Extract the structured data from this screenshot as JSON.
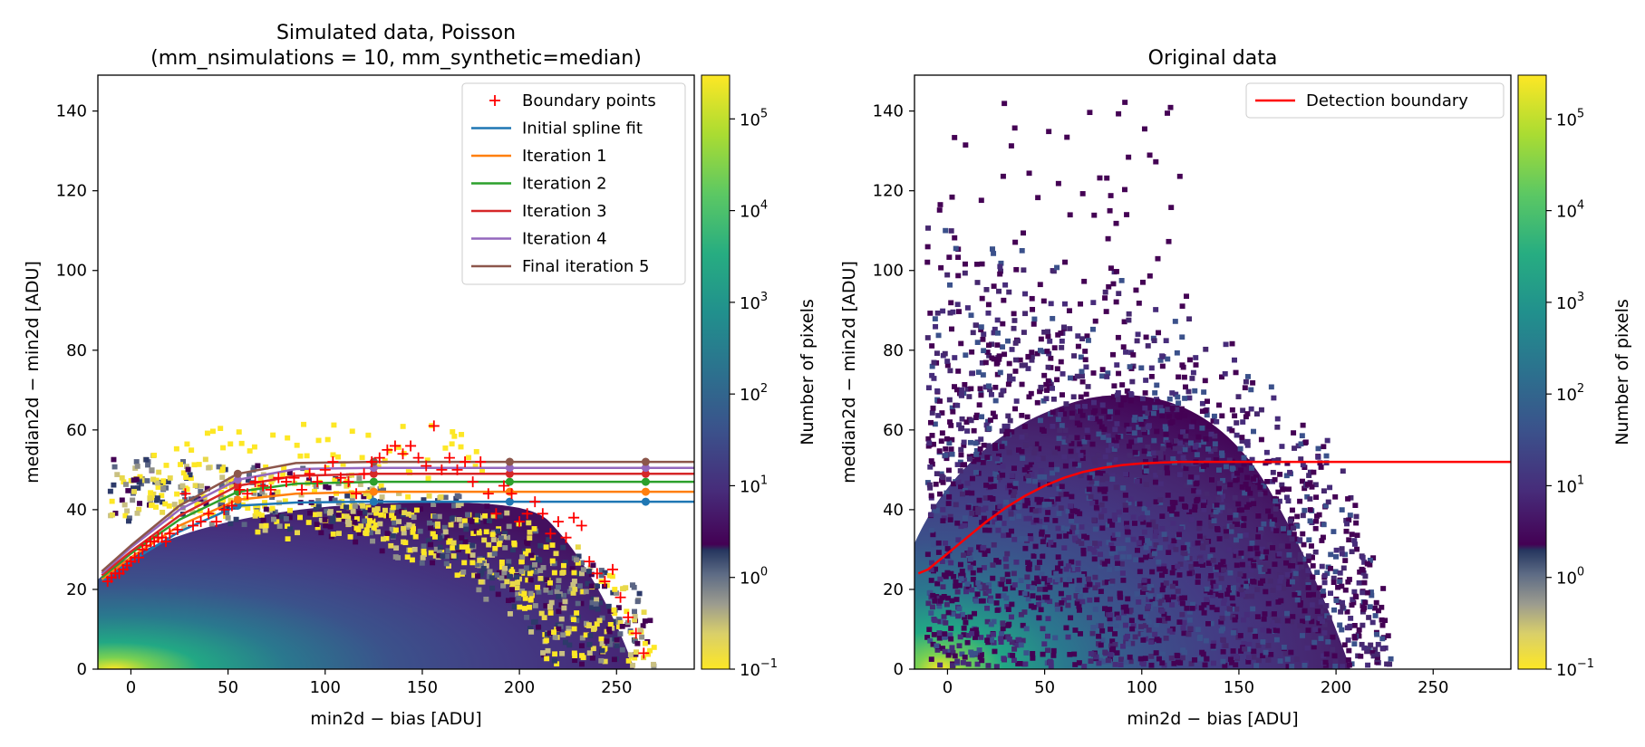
{
  "chart_data": [
    {
      "type": "heatmap",
      "title": "Simulated data, Poisson",
      "subtitle": "(mm_nsimulations = 10, mm_synthetic=median)",
      "xlabel": "min2d − bias  [ADU]",
      "ylabel": "median2d − min2d  [ADU]",
      "xlim": [
        -17,
        290
      ],
      "ylim": [
        0,
        149
      ],
      "x_ticks": [
        0,
        50,
        100,
        150,
        200,
        250
      ],
      "y_ticks": [
        0,
        20,
        40,
        60,
        80,
        100,
        120,
        140
      ],
      "colorbar": {
        "label": "Number of pixels",
        "scale": "log",
        "range": [
          0.1,
          300000
        ],
        "ticks": [
          "10",
          "10",
          "10",
          "10",
          "10",
          "10",
          "10"
        ],
        "tick_exponents": [
          "−1",
          "0",
          "1",
          "2",
          "3",
          "4",
          "5"
        ],
        "colormap": "viridis with cividis-like below 1"
      },
      "legend_position": "top-right",
      "series": [
        {
          "name": "Boundary points",
          "kind": "marker",
          "color": "#ff0000",
          "x": [
            -12,
            -10,
            -8,
            -6,
            -4,
            -2,
            0,
            2,
            4,
            6,
            8,
            10,
            12,
            14,
            16,
            18,
            20,
            24,
            28,
            32,
            36,
            40,
            44,
            48,
            52,
            56,
            60,
            64,
            68,
            72,
            76,
            80,
            84,
            88,
            92,
            96,
            100,
            104,
            108,
            112,
            116,
            120,
            124,
            128,
            132,
            136,
            140,
            144,
            148,
            152,
            156,
            160,
            164,
            168,
            172,
            176,
            180,
            184,
            188,
            192,
            196,
            200,
            204,
            208,
            212,
            216,
            220,
            224,
            228,
            232,
            236,
            240,
            244,
            248,
            252,
            256,
            260,
            264
          ],
          "y": [
            22,
            23,
            24,
            24,
            25,
            26,
            27,
            28,
            28,
            30,
            31,
            32,
            32,
            33,
            33,
            32,
            34,
            35,
            44,
            36,
            37,
            39,
            37,
            40,
            41,
            45,
            44,
            47,
            46,
            45,
            48,
            47,
            48,
            45,
            49,
            47,
            50,
            52,
            48,
            47,
            44,
            49,
            52,
            53,
            55,
            56,
            54,
            56,
            53,
            51,
            61,
            50,
            53,
            50,
            52,
            47,
            52,
            44,
            39,
            46,
            44,
            37,
            39,
            42,
            39,
            34,
            37,
            33,
            38,
            36,
            27,
            24,
            22,
            25,
            18,
            13,
            9,
            4
          ]
        },
        {
          "name": "Initial spline fit",
          "kind": "line",
          "color": "#1f77b4",
          "x": [
            -15,
            0,
            25,
            55,
            85,
            125,
            195,
            265,
            290
          ],
          "y": [
            22,
            27,
            34.5,
            41,
            41.8,
            42,
            42,
            42,
            42
          ]
        },
        {
          "name": "Iteration 1",
          "kind": "line",
          "color": "#ff7f0e",
          "x": [
            -15,
            0,
            25,
            55,
            85,
            125,
            195,
            265,
            290
          ],
          "y": [
            22.5,
            28,
            36,
            42.5,
            44,
            44.5,
            44.5,
            44.5,
            44.5
          ]
        },
        {
          "name": "Iteration 2",
          "kind": "line",
          "color": "#2ca02c",
          "x": [
            -15,
            0,
            25,
            55,
            85,
            125,
            195,
            265,
            290
          ],
          "y": [
            23,
            29,
            37.5,
            44.5,
            46.5,
            47,
            47,
            47,
            47
          ]
        },
        {
          "name": "Iteration 3",
          "kind": "line",
          "color": "#d62728",
          "x": [
            -15,
            0,
            25,
            55,
            85,
            125,
            195,
            265,
            290
          ],
          "y": [
            23.5,
            29.5,
            38.5,
            46,
            48.5,
            49,
            49,
            49,
            49
          ]
        },
        {
          "name": "Iteration 4",
          "kind": "line",
          "color": "#9467bd",
          "x": [
            -15,
            0,
            25,
            55,
            85,
            125,
            195,
            265,
            290
          ],
          "y": [
            24,
            30.5,
            40,
            47.5,
            50.2,
            50.5,
            50.5,
            50.5,
            50.5
          ]
        },
        {
          "name": "Final iteration 5",
          "kind": "line",
          "color": "#8c564b",
          "x": [
            -15,
            0,
            25,
            55,
            85,
            125,
            195,
            265,
            290
          ],
          "y": [
            24.5,
            31,
            41,
            49,
            51.7,
            52,
            52,
            52,
            52
          ]
        }
      ]
    },
    {
      "type": "heatmap",
      "title": "Original data",
      "xlabel": "min2d − bias  [ADU]",
      "ylabel": "median2d − min2d  [ADU]",
      "xlim": [
        -17,
        290
      ],
      "ylim": [
        0,
        149
      ],
      "x_ticks": [
        0,
        50,
        100,
        150,
        200,
        250
      ],
      "y_ticks": [
        0,
        20,
        40,
        60,
        80,
        100,
        120,
        140
      ],
      "colorbar": {
        "label": "Number of pixels",
        "scale": "log",
        "range": [
          0.1,
          300000
        ],
        "ticks": [
          "10",
          "10",
          "10",
          "10",
          "10",
          "10",
          "10"
        ],
        "tick_exponents": [
          "−1",
          "0",
          "1",
          "2",
          "3",
          "4",
          "5"
        ],
        "colormap": "viridis with cividis-like below 1"
      },
      "legend_position": "top-right",
      "series": [
        {
          "name": "Detection boundary",
          "kind": "line",
          "color": "#ff0000",
          "x": [
            -15,
            -10,
            0,
            10,
            20,
            30,
            40,
            50,
            60,
            70,
            80,
            90,
            100,
            110,
            120,
            130,
            150,
            200,
            290
          ],
          "y": [
            24,
            25,
            29,
            33,
            37,
            40.5,
            43.5,
            46,
            48,
            49.5,
            50.5,
            51.2,
            51.6,
            51.8,
            52,
            52,
            52,
            52,
            52
          ]
        }
      ]
    }
  ]
}
